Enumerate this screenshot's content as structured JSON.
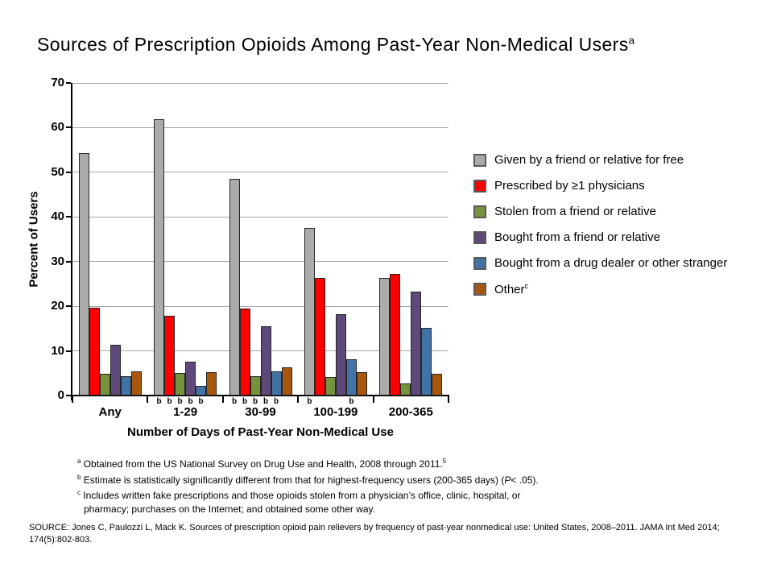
{
  "slide_title": {
    "text": "Sources of Prescription Opioids Among Past-Year Non-Medical Users",
    "sup": "a"
  },
  "chart_data": {
    "type": "bar",
    "title": "Sources of Prescription Opioids Among Past-Year Non-Medical Users",
    "xlabel": "Number of Days of Past-Year Non-Medical Use",
    "ylabel": "Percent of Users",
    "ylim": [
      0,
      70
    ],
    "yticks": [
      0,
      10,
      20,
      30,
      40,
      50,
      60,
      70
    ],
    "grid": true,
    "legend_position": "right",
    "categories": [
      "Any",
      "1-29",
      "30-99",
      "100-199",
      "200-365"
    ],
    "series": [
      {
        "name": "Given by a friend or relative for free",
        "color": "#ABABAB",
        "values": [
          54.4,
          61.9,
          48.5,
          37.6,
          26.4
        ]
      },
      {
        "name": "Prescribed by ≥1 physicians",
        "color": "#FF0000",
        "values": [
          19.7,
          17.8,
          19.5,
          26.4,
          27.3
        ]
      },
      {
        "name": "Stolen from a friend or relative",
        "color": "#76923C",
        "values": [
          4.9,
          5.0,
          4.4,
          4.1,
          2.8
        ]
      },
      {
        "name": "Bought from a friend or relative",
        "color": "#5F497A",
        "values": [
          11.4,
          7.5,
          15.5,
          18.3,
          23.2
        ]
      },
      {
        "name": "Bought from a drug dealer or other stranger",
        "color": "#4273A6",
        "values": [
          4.4,
          2.2,
          5.4,
          8.2,
          15.2
        ]
      },
      {
        "name": "Other",
        "name_sup": "c",
        "color": "#A8570F",
        "values": [
          5.4,
          5.3,
          6.3,
          5.2,
          4.9
        ]
      }
    ],
    "significance_markers": {
      "symbol": "b",
      "per_category_series": [
        [],
        [
          0,
          1,
          2,
          3,
          4
        ],
        [
          0,
          1,
          2,
          3,
          4
        ],
        [
          0,
          4
        ],
        []
      ]
    }
  },
  "footnotes": {
    "a": {
      "sup": "a",
      "text": "Obtained from the US National Survey on Drug Use and Health, 2008 through 2011.",
      "end_sup": "5"
    },
    "b": {
      "sup": "b",
      "text_before": "Estimate is statistically significantly different from that for highest-frequency users (200-365 days) (",
      "italic": "P",
      "text_after": "< .05)."
    },
    "c": {
      "sup": "c",
      "line1": "Includes written fake prescriptions and those opioids stolen from a physician’s office, clinic, hospital, or",
      "line2": "pharmacy; purchases on the Internet; and obtained some other way."
    }
  },
  "source": {
    "line1": "SOURCE: Jones C, Paulozzi L, Mack K. Sources of prescription opioid pain relievers by frequency of past-year nonmedical use: United States, 2008–2011. JAMA Int Med 2014;",
    "line2": "174(5):802-803."
  }
}
